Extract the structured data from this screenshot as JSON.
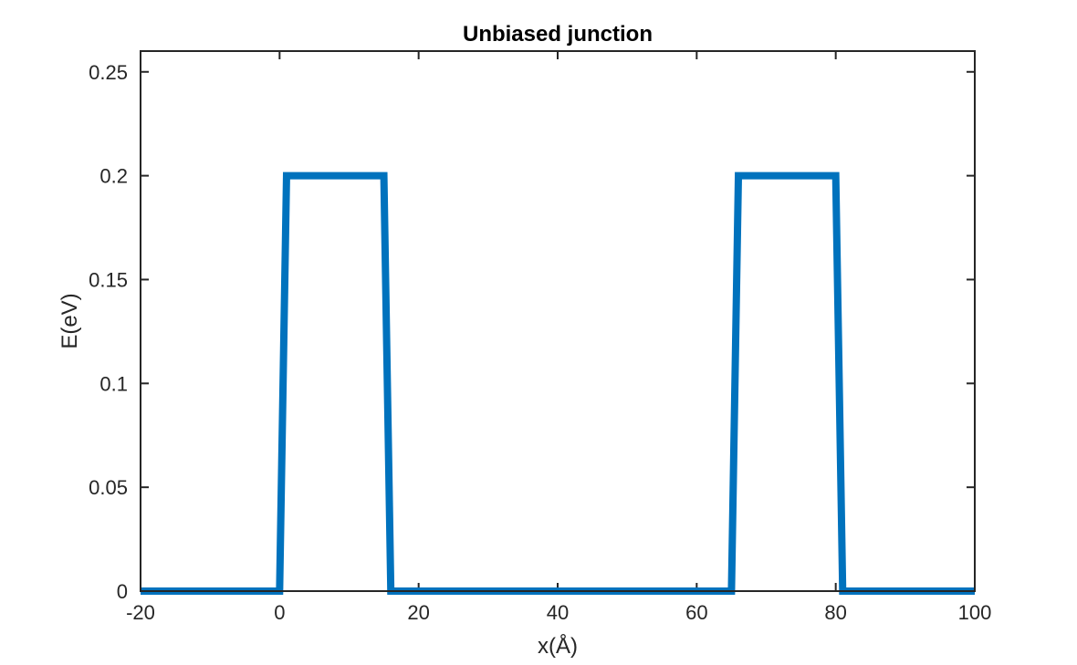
{
  "chart_data": {
    "type": "line",
    "title": "Unbiased junction",
    "xlabel": "x(Å)",
    "ylabel": "E(eV)",
    "xlim": [
      -20,
      100
    ],
    "ylim": [
      0,
      0.26
    ],
    "grid": false,
    "x_ticks": [
      -20,
      0,
      20,
      40,
      60,
      80,
      100
    ],
    "y_ticks": [
      0,
      0.05,
      0.1,
      0.15,
      0.2,
      0.25
    ],
    "x_tick_labels": [
      "-20",
      "0",
      "20",
      "40",
      "60",
      "80",
      "100"
    ],
    "y_tick_labels": [
      "0",
      "0.05",
      "0.1",
      "0.15",
      "0.2",
      "0.25"
    ],
    "series": [
      {
        "color": "#0072BD",
        "x": [
          -20,
          0,
          1,
          15,
          16,
          65,
          66,
          80,
          81,
          100
        ],
        "y": [
          0,
          0,
          0.2,
          0.2,
          0,
          0,
          0.2,
          0.2,
          0,
          0
        ]
      }
    ]
  }
}
